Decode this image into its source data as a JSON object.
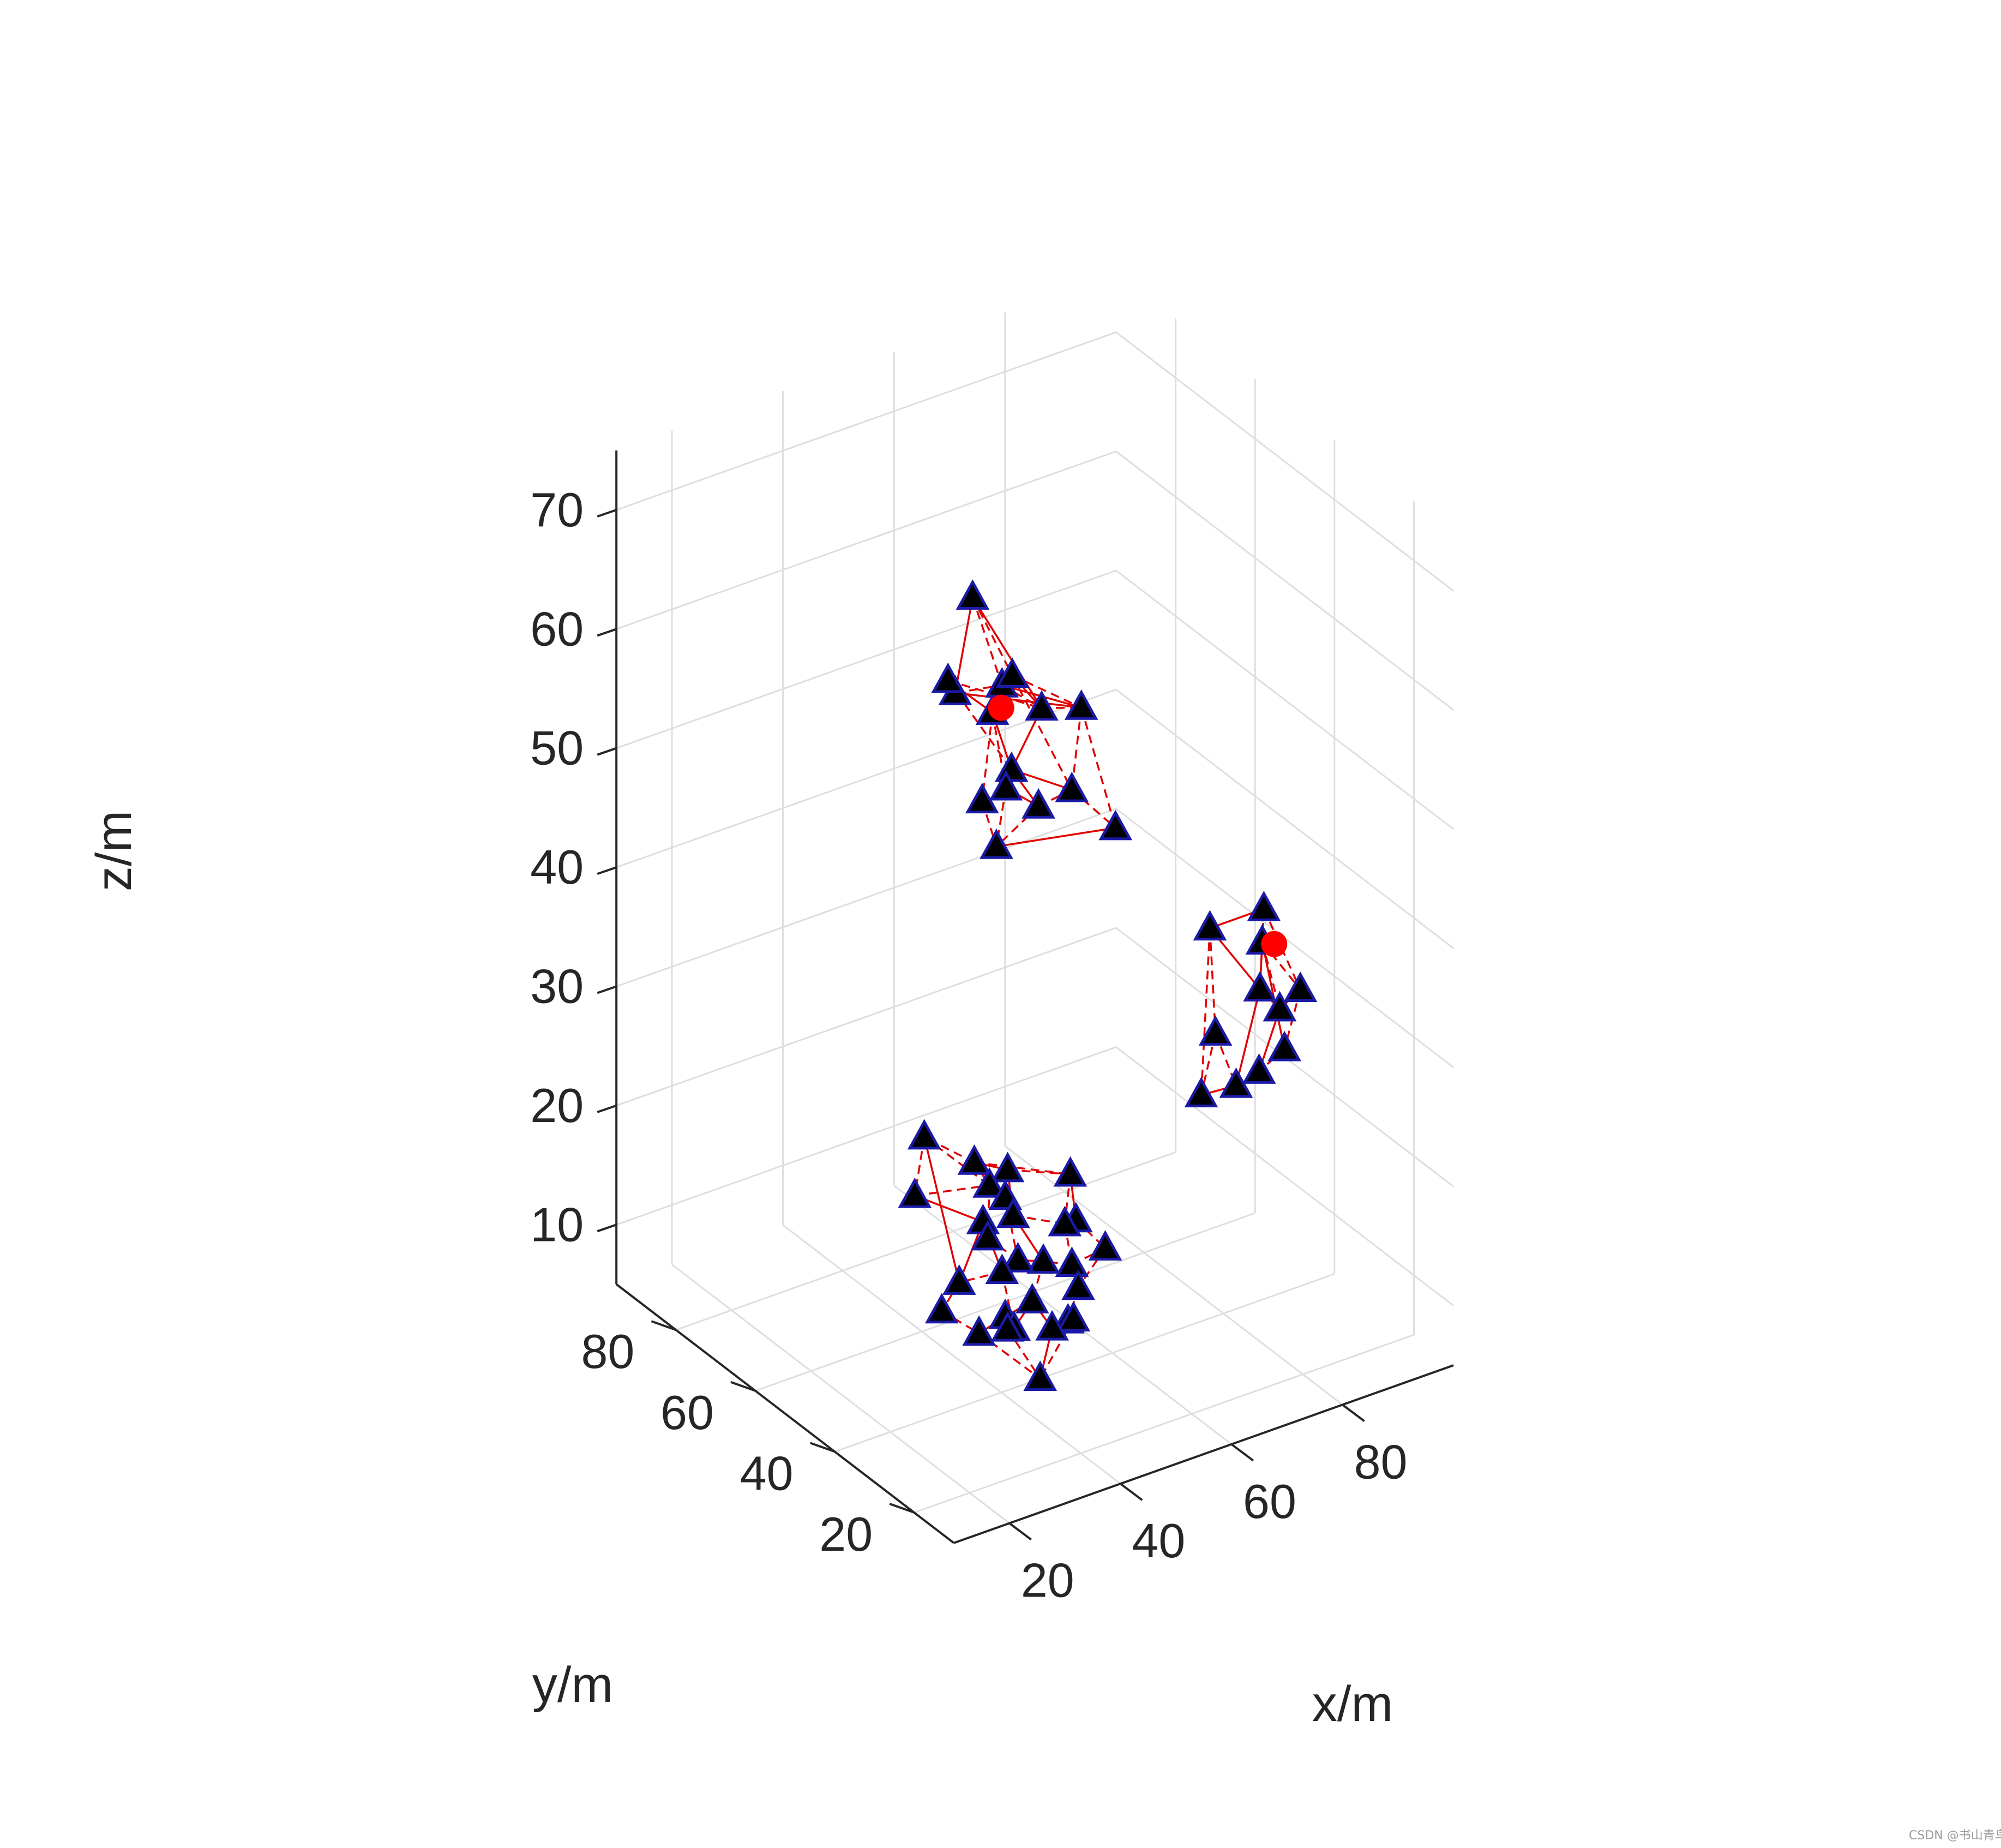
{
  "chart_data": {
    "type": "scatter3d",
    "view": "isometric (azimuth -45, elevation ~35)",
    "grid": true,
    "xlabel": "x/m",
    "ylabel": "y/m",
    "zlabel": "z/m",
    "xlim": [
      10,
      100
    ],
    "ylim": [
      10,
      95
    ],
    "zlim": [
      5,
      75
    ],
    "xticks": [
      20,
      40,
      60,
      80
    ],
    "yticks": [
      20,
      40,
      60,
      80
    ],
    "zticks": [
      10,
      20,
      30,
      40,
      50,
      60,
      70
    ],
    "colors": {
      "node_fill": "#000000",
      "node_edge": "#1a1aa6",
      "head": "#ff0000",
      "link": "#e00000",
      "grid": "#dedede",
      "axis": "#262626"
    },
    "clusters": [
      {
        "head": [
          60,
          68,
          52
        ],
        "nodes": [
          [
            57,
            71,
            61
          ],
          [
            51,
            67,
            55
          ],
          [
            58,
            65,
            55
          ],
          [
            57,
            61,
            57
          ],
          [
            54,
            73,
            54
          ],
          [
            63,
            62,
            53
          ],
          [
            68,
            59,
            53
          ],
          [
            62,
            73,
            50
          ],
          [
            59,
            64,
            48
          ],
          [
            67,
            60,
            46
          ],
          [
            72,
            56,
            43
          ],
          [
            58,
            70,
            44
          ],
          [
            66,
            67,
            43
          ],
          [
            63,
            71,
            44
          ],
          [
            62,
            72,
            39
          ]
        ],
        "links": [
          [
            0,
            1
          ],
          [
            0,
            2
          ],
          [
            0,
            3
          ],
          [
            0,
            5
          ],
          [
            1,
            4
          ],
          [
            1,
            2
          ],
          [
            1,
            6
          ],
          [
            2,
            3
          ],
          [
            2,
            5
          ],
          [
            3,
            5
          ],
          [
            3,
            6
          ],
          [
            4,
            1
          ],
          [
            4,
            7
          ],
          [
            4,
            8
          ],
          [
            5,
            6
          ],
          [
            5,
            8
          ],
          [
            6,
            9
          ],
          [
            6,
            10
          ],
          [
            7,
            8
          ],
          [
            7,
            11
          ],
          [
            7,
            13
          ],
          [
            8,
            9
          ],
          [
            9,
            10
          ],
          [
            9,
            12
          ],
          [
            10,
            14
          ],
          [
            11,
            14
          ],
          [
            11,
            13
          ],
          [
            12,
            13
          ],
          [
            12,
            14
          ],
          [
            13,
            14
          ],
          [
            2,
            6
          ],
          [
            4,
            5
          ],
          [
            3,
            9
          ],
          [
            8,
            12
          ]
        ]
      },
      {
        "head": [
          92,
          44,
          33
        ],
        "nodes": [
          [
            83,
            34,
            40
          ],
          [
            79,
            42,
            37
          ],
          [
            83,
            35,
            33
          ],
          [
            87,
            40,
            35
          ],
          [
            86,
            29,
            34
          ],
          [
            88,
            37,
            30
          ],
          [
            80,
            42,
            28
          ],
          [
            76,
            40,
            24
          ],
          [
            78,
            34,
            26
          ],
          [
            86,
            33,
            28
          ],
          [
            85,
            38,
            25
          ]
        ],
        "links": [
          [
            0,
            1
          ],
          [
            0,
            2
          ],
          [
            0,
            3
          ],
          [
            1,
            2
          ],
          [
            1,
            6
          ],
          [
            1,
            7
          ],
          [
            2,
            3
          ],
          [
            2,
            5
          ],
          [
            3,
            4
          ],
          [
            3,
            9
          ],
          [
            4,
            5
          ],
          [
            4,
            9
          ],
          [
            5,
            10
          ],
          [
            6,
            7
          ],
          [
            6,
            8
          ],
          [
            7,
            8
          ],
          [
            8,
            10
          ],
          [
            9,
            10
          ],
          [
            2,
            8
          ],
          [
            3,
            5
          ],
          [
            0,
            4
          ]
        ]
      },
      {
        "head": null,
        "nodes": [
          [
            43,
            51,
            21
          ],
          [
            44,
            44,
            22
          ],
          [
            39,
            58,
            22
          ],
          [
            51,
            38,
            22
          ],
          [
            52,
            38,
            18
          ],
          [
            53,
            32,
            17
          ],
          [
            38,
            59,
            17
          ],
          [
            45,
            50,
            19
          ],
          [
            45,
            46,
            19
          ],
          [
            45,
            44,
            18
          ],
          [
            50,
            38,
            18
          ],
          [
            46,
            53,
            15
          ],
          [
            52,
            39,
            14
          ],
          [
            49,
            42,
            14
          ],
          [
            51,
            36,
            13
          ],
          [
            44,
            49,
            15
          ],
          [
            48,
            47,
            13
          ],
          [
            48,
            51,
            11
          ],
          [
            52,
            40,
            9
          ],
          [
            45,
            46,
            9
          ],
          [
            41,
            52,
            11
          ],
          [
            48,
            48,
            7
          ],
          [
            40,
            55,
            8
          ],
          [
            47,
            42,
            11
          ],
          [
            53,
            40,
            9
          ],
          [
            47,
            37,
            10
          ],
          [
            41,
            47,
            8
          ],
          [
            49,
            51,
            6
          ],
          [
            47,
            40,
            5
          ]
        ],
        "links": [
          [
            0,
            1
          ],
          [
            0,
            2
          ],
          [
            0,
            3
          ],
          [
            0,
            7
          ],
          [
            1,
            3
          ],
          [
            1,
            8
          ],
          [
            1,
            9
          ],
          [
            2,
            6
          ],
          [
            2,
            7
          ],
          [
            3,
            4
          ],
          [
            3,
            10
          ],
          [
            4,
            5
          ],
          [
            4,
            10
          ],
          [
            5,
            12
          ],
          [
            6,
            7
          ],
          [
            6,
            11
          ],
          [
            7,
            8
          ],
          [
            7,
            15
          ],
          [
            8,
            9
          ],
          [
            8,
            16
          ],
          [
            9,
            10
          ],
          [
            9,
            13
          ],
          [
            10,
            12
          ],
          [
            11,
            15
          ],
          [
            11,
            17
          ],
          [
            12,
            13
          ],
          [
            12,
            14
          ],
          [
            13,
            16
          ],
          [
            14,
            18
          ],
          [
            15,
            16
          ],
          [
            16,
            17
          ],
          [
            17,
            21
          ],
          [
            18,
            24
          ],
          [
            19,
            21
          ],
          [
            19,
            26
          ],
          [
            20,
            22
          ],
          [
            20,
            11
          ],
          [
            21,
            27
          ],
          [
            22,
            26
          ],
          [
            23,
            25
          ],
          [
            23,
            19
          ],
          [
            24,
            28
          ],
          [
            25,
            28
          ],
          [
            26,
            28
          ],
          [
            27,
            28
          ],
          [
            2,
            20
          ],
          [
            13,
            23
          ],
          [
            5,
            14
          ],
          [
            0,
            8
          ],
          [
            17,
            20
          ],
          [
            18,
            25
          ],
          [
            21,
            23
          ]
        ]
      }
    ]
  }
}
